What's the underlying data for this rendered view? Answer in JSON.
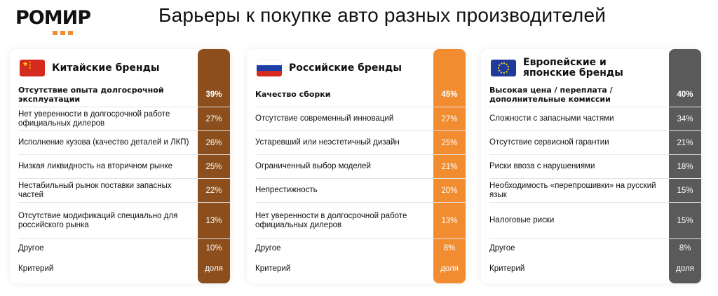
{
  "logo": "РОМИР",
  "title": "Барьеры к покупке авто разных производителей",
  "cards": [
    {
      "name": "Китайские бренды",
      "flag": "china-flag-icon",
      "color": "#8B4E1C",
      "rows": [
        {
          "label": "Отсутствие опыта долгосрочной эксплуатации",
          "value": "39%"
        },
        {
          "label": "Нет уверенности в долгосрочной работе официальных дилеров",
          "value": "27%"
        },
        {
          "label": "Исполнение кузова (качество деталей и ЛКП)",
          "value": "26%"
        },
        {
          "label": "Низкая ликвидность на вторичном рынке",
          "value": "25%"
        },
        {
          "label": "Нестабильный рынок поставки запасных частей",
          "value": "22%"
        },
        {
          "label": "Отсутствие модификаций специально для российского рынка",
          "value": "13%"
        },
        {
          "label": "Другое",
          "value": "10%"
        },
        {
          "label": "Критерий",
          "value": "доля"
        }
      ]
    },
    {
      "name": "Российские бренды",
      "flag": "russia-flag-icon",
      "color": "#F28C30",
      "rows": [
        {
          "label": "Качество сборки",
          "value": "45%"
        },
        {
          "label": "Отсутствие современный инноваций",
          "value": "27%"
        },
        {
          "label": "Устаревший или неэстетичный дизайн",
          "value": "25%"
        },
        {
          "label": "Ограниченный выбор моделей",
          "value": "21%"
        },
        {
          "label": "Непрестижность",
          "value": "20%"
        },
        {
          "label": "Нет уверенности в долгосрочной работе официальных дилеров",
          "value": "13%"
        },
        {
          "label": "Другое",
          "value": "8%"
        },
        {
          "label": "Критерий",
          "value": "доля"
        }
      ]
    },
    {
      "name": "Европейские и японские бренды",
      "flag": "eu-flag-icon",
      "color": "#5A5A5A",
      "rows": [
        {
          "label": "Высокая цена / переплата / дополнительные комиссии",
          "value": "40%"
        },
        {
          "label": "Сложности с запасными частями",
          "value": "34%"
        },
        {
          "label": "Отсутствие сервисной гарантии",
          "value": "21%"
        },
        {
          "label": "Риски ввоза с нарушениями",
          "value": "18%"
        },
        {
          "label": "Необходимость «перепрошивки» на русский язык",
          "value": "15%"
        },
        {
          "label": "Налоговые риски",
          "value": "15%"
        },
        {
          "label": "Другое",
          "value": "8%"
        },
        {
          "label": "Критерий",
          "value": "доля"
        }
      ]
    }
  ]
}
